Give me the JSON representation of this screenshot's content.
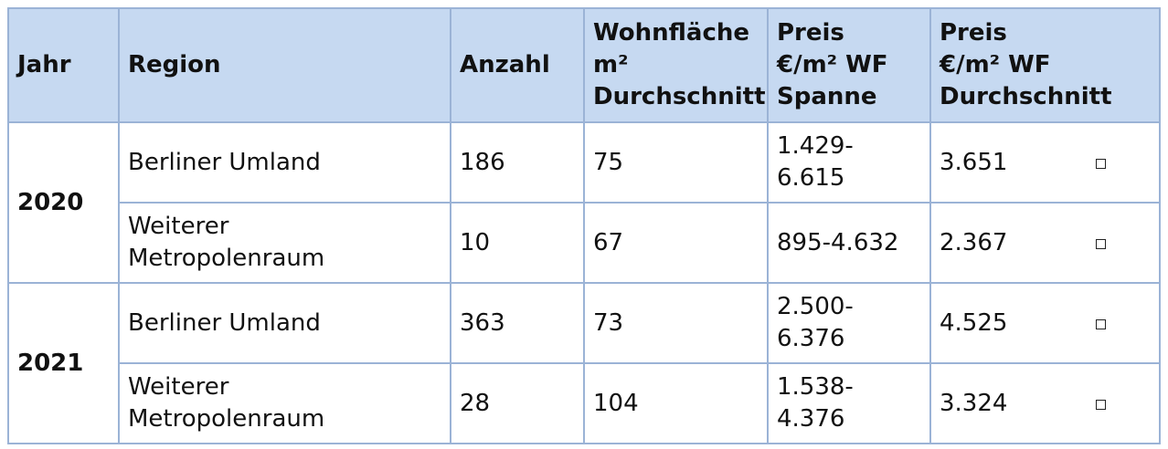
{
  "headers": [
    "Jahr",
    "Region",
    "Anzahl",
    "Wohnfläche\nm²\nDurchschnitt",
    "Preis\n€/m² WF\nSpanne",
    "Preis\n€/m² WF\nDurchschnitt"
  ],
  "groups": [
    {
      "year": "2020",
      "rows": [
        {
          "region": "Berliner Umland",
          "anzahl": "186",
          "wohnflaeche": "75",
          "spanne": "1.429-\n6.615",
          "durchschnitt": "3.651"
        },
        {
          "region": "Weiterer\nMetropolenraum",
          "anzahl": "10",
          "wohnflaeche": "67",
          "spanne": "895-4.632",
          "durchschnitt": "2.367"
        }
      ]
    },
    {
      "year": "2021",
      "rows": [
        {
          "region": "Berliner Umland",
          "anzahl": "363",
          "wohnflaeche": "73",
          "spanne": "2.500-\n6.376",
          "durchschnitt": "4.525"
        },
        {
          "region": "Weiterer\nMetropolenraum",
          "anzahl": "28",
          "wohnflaeche": "104",
          "spanne": "1.538-\n4.376",
          "durchschnitt": "3.324"
        }
      ]
    }
  ]
}
